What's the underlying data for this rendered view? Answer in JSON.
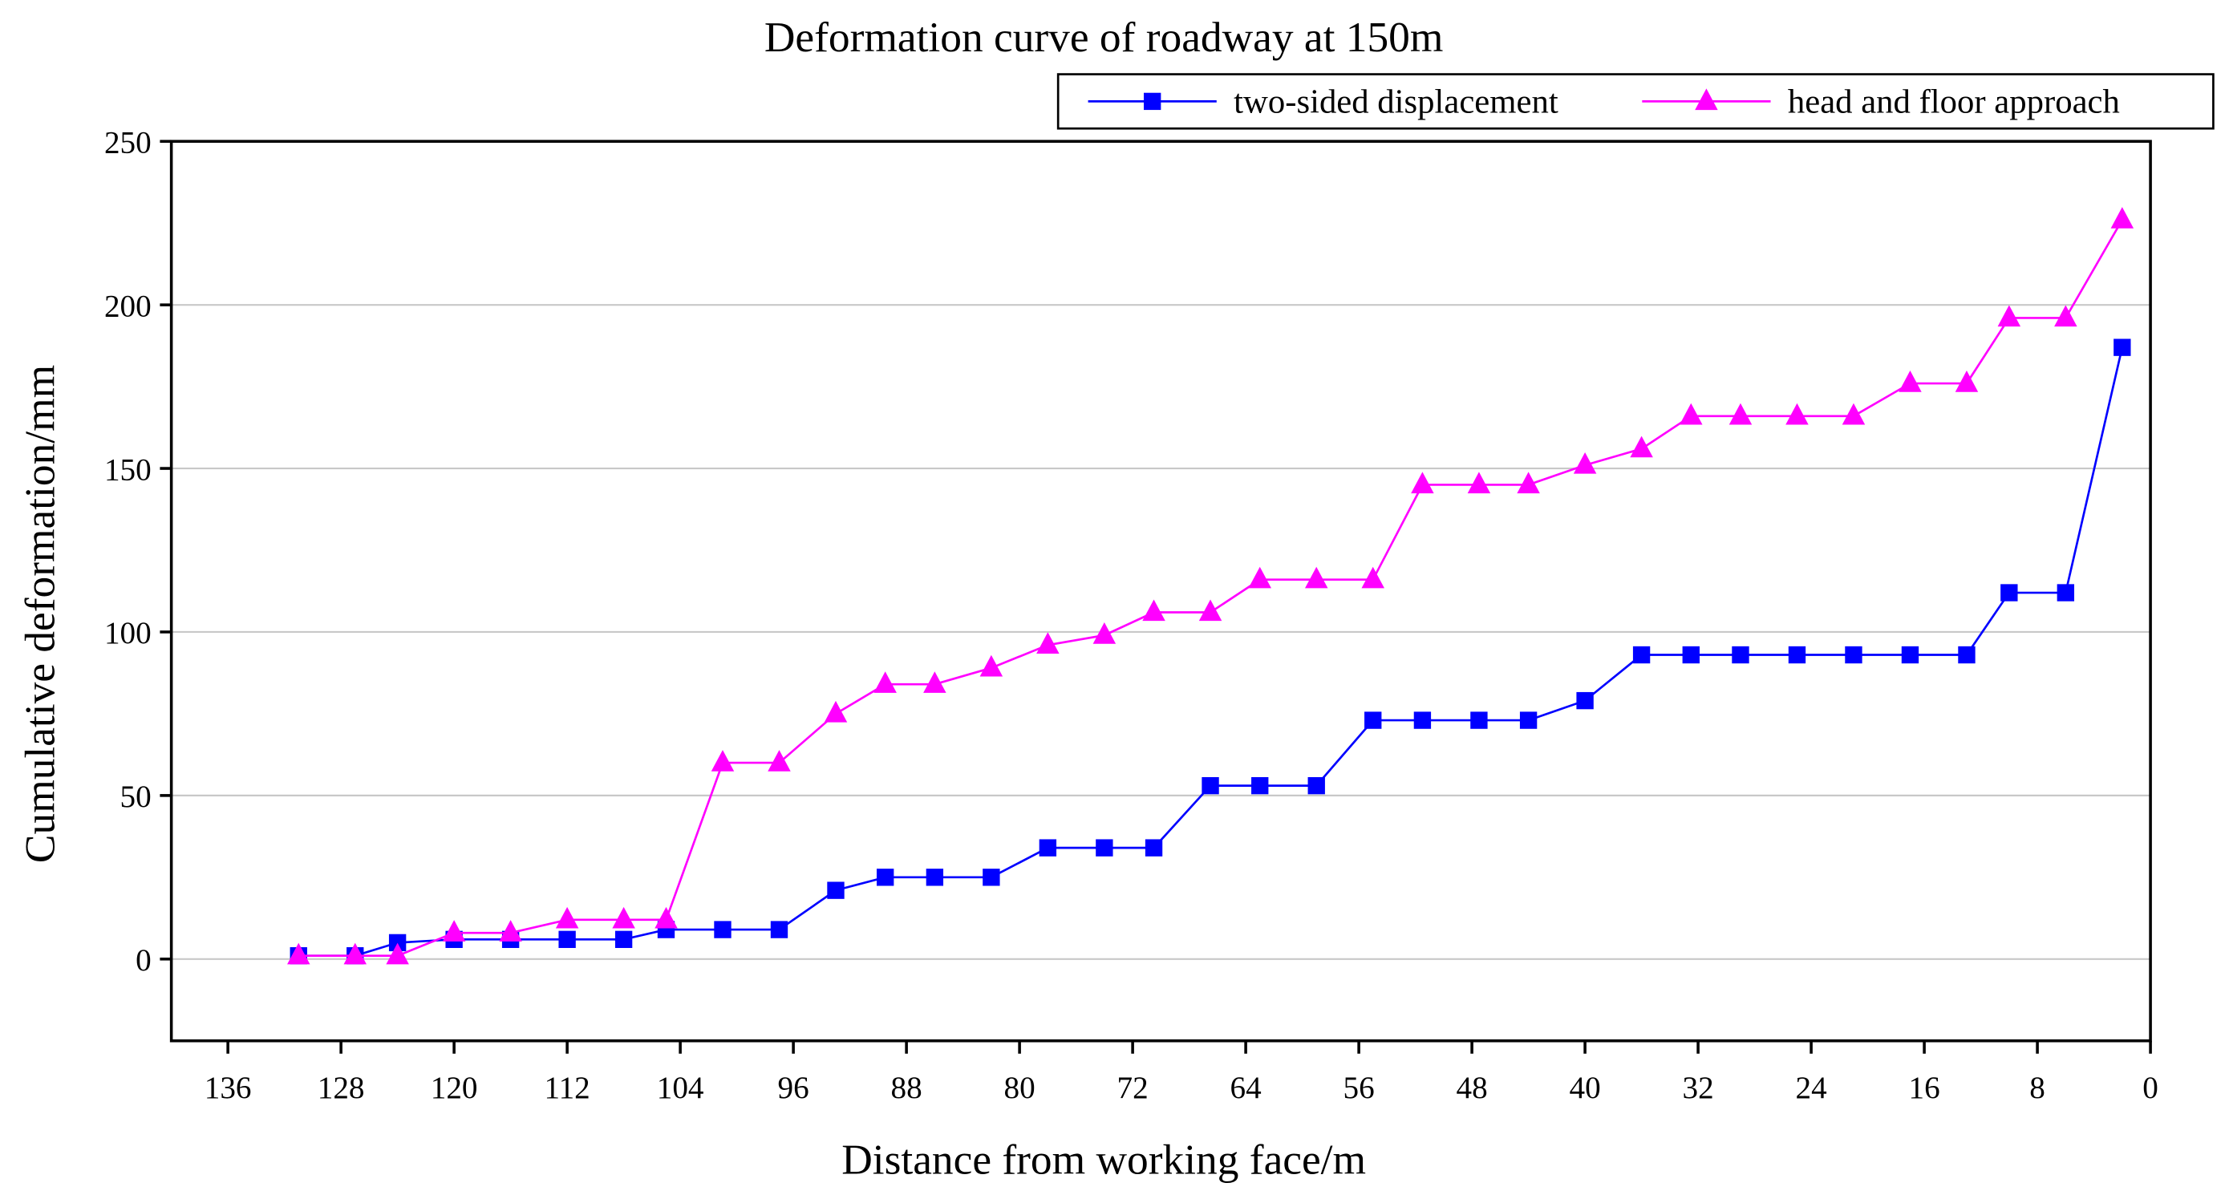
{
  "chart_data": {
    "type": "line",
    "title": "Deformation curve of roadway at 150m",
    "xlabel": "Distance from working face/m",
    "ylabel": "Cumulative deformation/mm",
    "x": [
      131,
      127,
      124,
      120,
      116,
      112,
      108,
      105,
      101,
      97,
      93,
      89.5,
      86,
      82,
      78,
      74,
      70.5,
      66.5,
      63,
      59,
      55,
      51.5,
      47.5,
      44,
      40,
      36,
      32.5,
      29,
      25,
      21,
      17,
      13,
      10,
      6,
      2
    ],
    "series": [
      {
        "name": "two-sided displacement",
        "color": "#0000ff",
        "marker": "square",
        "values": [
          1,
          1,
          5,
          6,
          6,
          6,
          6,
          9,
          9,
          9,
          21,
          25,
          25,
          25,
          34,
          34,
          34,
          53,
          53,
          53,
          73,
          73,
          73,
          73,
          79,
          93,
          93,
          93,
          93,
          93,
          93,
          93,
          112,
          112,
          187
        ]
      },
      {
        "name": "head and floor approach",
        "color": "#ff00ff",
        "marker": "triangle",
        "values": [
          1,
          1,
          1,
          8,
          8,
          12,
          12,
          12,
          60,
          60,
          75,
          84,
          84,
          89,
          96,
          99,
          106,
          106,
          116,
          116,
          116,
          145,
          145,
          145,
          151,
          156,
          166,
          166,
          166,
          166,
          176,
          176,
          196,
          196,
          226
        ]
      }
    ],
    "xlim": [
      140,
      0
    ],
    "xticks": [
      136,
      128,
      120,
      112,
      104,
      96,
      88,
      80,
      72,
      64,
      56,
      48,
      40,
      32,
      24,
      16,
      8,
      0
    ],
    "ylim": [
      -25,
      250
    ],
    "yticks": [
      0,
      50,
      100,
      150,
      200,
      250
    ],
    "grid": true,
    "legend": "top right"
  }
}
